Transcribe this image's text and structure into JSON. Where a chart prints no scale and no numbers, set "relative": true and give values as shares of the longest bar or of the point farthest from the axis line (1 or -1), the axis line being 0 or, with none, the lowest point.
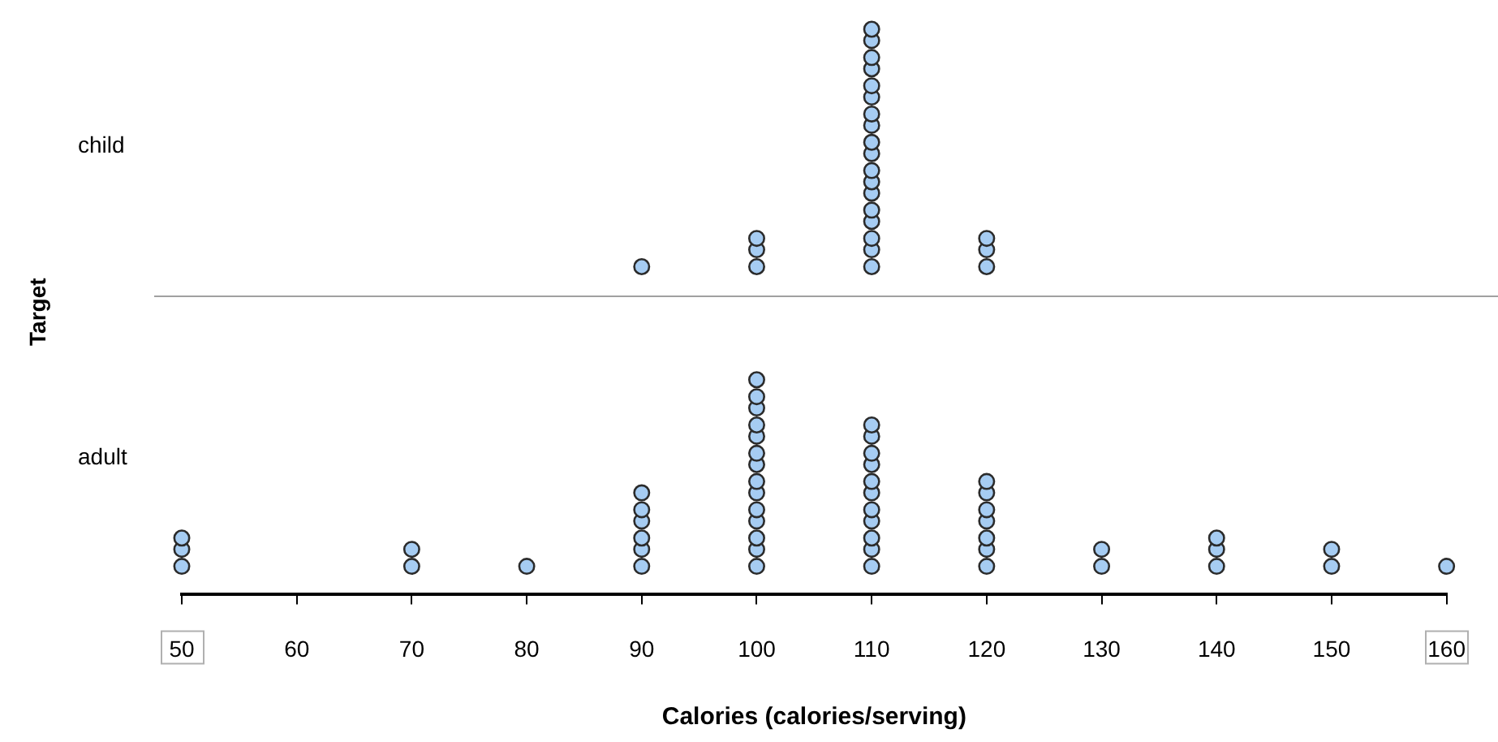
{
  "chart_data": {
    "type": "scatter",
    "relative": true,
    "annotations": [
      "child",
      "adult",
      "Target"
    ],
    "xlabel": "Calories (calories/serving)",
    "xlim": [
      50,
      160
    ],
    "xticks": [
      50,
      60,
      70,
      80,
      90,
      100,
      110,
      120,
      130,
      140,
      150,
      160
    ],
    "marker": "circle",
    "ref_lines": [
      {
        "axis": "y",
        "value": 0.53,
        "color": "#a0a0a0"
      }
    ],
    "series": [
      {
        "color": "#a6ccf2",
        "x": [
          90,
          100,
          100,
          100,
          110,
          110,
          110,
          110,
          110,
          110,
          110,
          110,
          110,
          110,
          110,
          110,
          110,
          110,
          110,
          110,
          110,
          110,
          120,
          120,
          120
        ],
        "values": [
          0.58,
          0.58,
          0.61,
          0.63,
          0.58,
          0.61,
          0.63,
          0.66,
          0.68,
          0.71,
          0.73,
          0.75,
          0.78,
          0.8,
          0.83,
          0.85,
          0.88,
          0.9,
          0.93,
          0.95,
          0.98,
          1,
          0.58,
          0.61,
          0.63
        ]
      },
      {
        "color": "#a6ccf2",
        "x": [
          50,
          50,
          50,
          70,
          70,
          80,
          90,
          90,
          90,
          90,
          90,
          90,
          100,
          100,
          100,
          100,
          100,
          100,
          100,
          100,
          100,
          100,
          100,
          100,
          100,
          100,
          110,
          110,
          110,
          110,
          110,
          110,
          110,
          110,
          110,
          110,
          110,
          120,
          120,
          120,
          120,
          120,
          120,
          120,
          130,
          130,
          140,
          140,
          140,
          150,
          150,
          160
        ],
        "values": [
          0.05,
          0.08,
          0.1,
          0.05,
          0.08,
          0.05,
          0.05,
          0.08,
          0.1,
          0.13,
          0.15,
          0.18,
          0.05,
          0.08,
          0.1,
          0.13,
          0.15,
          0.18,
          0.2,
          0.23,
          0.25,
          0.28,
          0.3,
          0.33,
          0.35,
          0.38,
          0.05,
          0.08,
          0.1,
          0.13,
          0.15,
          0.18,
          0.2,
          0.23,
          0.25,
          0.28,
          0.3,
          0.05,
          0.08,
          0.1,
          0.13,
          0.15,
          0.18,
          0.2,
          0.05,
          0.08,
          0.05,
          0.08,
          0.1,
          0.05,
          0.08,
          0.05
        ]
      }
    ]
  }
}
